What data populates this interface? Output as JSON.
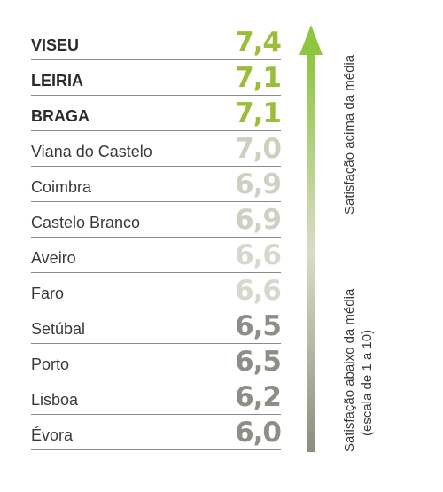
{
  "chart_data": {
    "type": "table",
    "title": "",
    "categories": [
      "VISEU",
      "LEIRIA",
      "BRAGA",
      "Viana do Castelo",
      "Coimbra",
      "Castelo Branco",
      "Aveiro",
      "Faro",
      "Setúbal",
      "Porto",
      "Lisboa",
      "Évora"
    ],
    "labels": [
      "7,4",
      "7,1",
      "7,1",
      "7,0",
      "6,9",
      "6,9",
      "6,6",
      "6,6",
      "6,5",
      "6,5",
      "6,2",
      "6,0"
    ],
    "values": [
      7.4,
      7.1,
      7.1,
      7.0,
      6.9,
      6.9,
      6.6,
      6.6,
      6.5,
      6.5,
      6.2,
      6.0
    ],
    "highlight_top": 3,
    "colors": [
      "#9cbc3c",
      "#9cbc3c",
      "#9cbc3c",
      "#cfcfbf",
      "#d0d0c2",
      "#d0d0c2",
      "#d7d7cd",
      "#d7d7cd",
      "#8e8e86",
      "#8e8e86",
      "#8e8e86",
      "#8e8e86"
    ],
    "arrow": {
      "top_label": "Satisfação acima da média",
      "bottom_label_1": "Satisfação abaixo da média",
      "bottom_label_2": "(escala de 1 a 10)",
      "color_top": "#8dc63f",
      "color_bottom": "#8e8e80"
    }
  }
}
